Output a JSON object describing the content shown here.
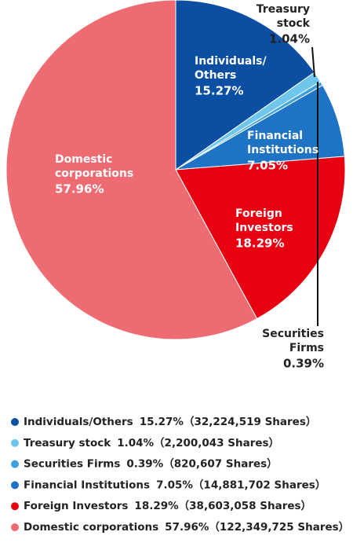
{
  "chart_data": {
    "type": "pie",
    "categories": [
      "Individuals/Others",
      "Treasury stock",
      "Securities Firms",
      "Financial Institutions",
      "Foreign Investors",
      "Domestic corporations"
    ],
    "values": [
      15.27,
      1.04,
      0.39,
      7.05,
      18.29,
      57.96
    ],
    "value_labels": [
      "15.27%",
      "1.04%",
      "0.39%",
      "7.05%",
      "18.29%",
      "57.96%"
    ],
    "colors": [
      "#0a4fa2",
      "#6ec6ec",
      "#3d9fdc",
      "#1e73c5",
      "#e60012",
      "#ee6b71"
    ],
    "slice_labels": [
      [
        "Individuals/",
        "Others"
      ],
      [
        "Treasury",
        "stock"
      ],
      [
        "Securities",
        "Firms"
      ],
      [
        "Financial",
        "Institutions"
      ],
      [
        "Foreign",
        "Investors"
      ],
      [
        "Domestic",
        "corporations"
      ]
    ],
    "share_labels": [
      "（32,224,519 Shares）",
      "（2,200,043 Shares）",
      "（820,607 Shares）",
      "（14,881,702 Shares）",
      "（38,603,058 Shares）",
      "（122,349,725 Shares）"
    ]
  }
}
